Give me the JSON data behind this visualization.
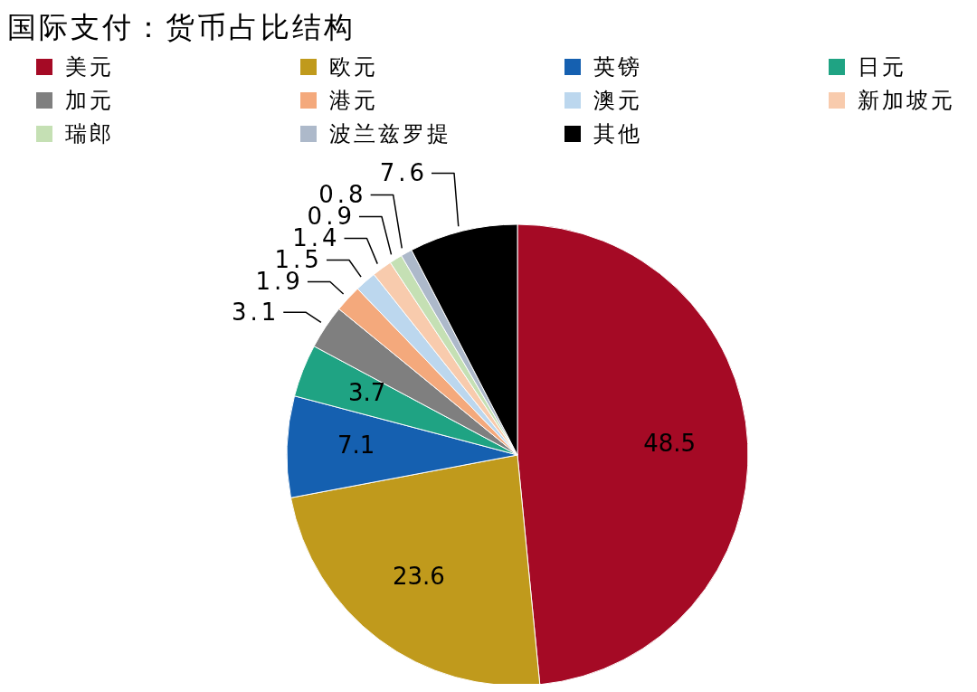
{
  "chart_data": {
    "type": "pie",
    "title": "国际支付：货币占比结构",
    "categories": [
      "美元",
      "欧元",
      "英镑",
      "日元",
      "加元",
      "港元",
      "澳元",
      "新加坡元",
      "瑞郎",
      "波兰兹罗提",
      "其他"
    ],
    "values": [
      48.5,
      23.6,
      7.1,
      3.7,
      3.1,
      1.9,
      1.5,
      1.4,
      0.9,
      0.8,
      7.6
    ],
    "colors": [
      "#a50a25",
      "#c09a1c",
      "#1560b0",
      "#1fa383",
      "#7f7f7f",
      "#f4a97c",
      "#bcd7ee",
      "#f8cbad",
      "#c5e0b4",
      "#adb9ca",
      "#000000"
    ],
    "data_labels": true,
    "legend": "top"
  }
}
